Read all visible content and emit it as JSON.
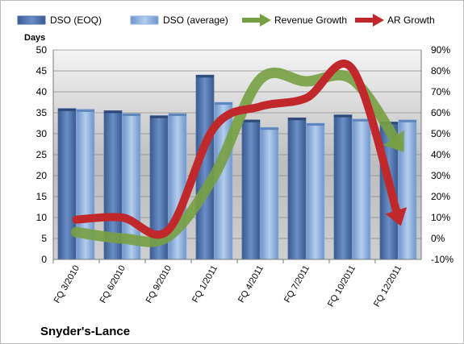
{
  "chart_data": {
    "type": "bar",
    "title": "Snyder's-Lance",
    "ylabel": "Days",
    "ylim": [
      0,
      50
    ],
    "y_ticks": [
      "0",
      "5",
      "10",
      "15",
      "20",
      "25",
      "30",
      "35",
      "40",
      "45",
      "50"
    ],
    "y2lim": [
      -0.1,
      0.9
    ],
    "y2_ticks": [
      "-10%",
      "0%",
      "10%",
      "20%",
      "30%",
      "40%",
      "50%",
      "60%",
      "70%",
      "80%",
      "90%"
    ],
    "categories": [
      "FQ 3/2010",
      "FQ 6/2010",
      "FQ 9/2010",
      "FQ 1/2011",
      "FQ 4/2011",
      "FQ 7/2011",
      "FQ 10/2011",
      "FQ 12/2011"
    ],
    "grid": true,
    "legend_position": "top",
    "series": [
      {
        "name": "DSO (EOQ)",
        "kind": "bar",
        "axis": "left",
        "color": "#4a6ea8",
        "values": [
          36,
          35.5,
          34.3,
          44,
          33.3,
          33.8,
          34.5,
          32.8
        ]
      },
      {
        "name": "DSO (average)",
        "kind": "bar",
        "axis": "left",
        "color": "#8eb4e3",
        "values": [
          35.8,
          34.8,
          34.8,
          37.5,
          31.5,
          32.5,
          33.5,
          33.3
        ]
      },
      {
        "name": "Revenue Growth",
        "kind": "line",
        "axis": "right",
        "color": "#77a043",
        "values": [
          0.03,
          0.0,
          0.01,
          0.3,
          0.76,
          0.75,
          0.76,
          0.45
        ]
      },
      {
        "name": "AR Growth",
        "kind": "line",
        "axis": "right",
        "color": "#c0282c",
        "values": [
          0.09,
          0.1,
          0.04,
          0.53,
          0.63,
          0.67,
          0.81,
          0.1
        ]
      }
    ]
  }
}
